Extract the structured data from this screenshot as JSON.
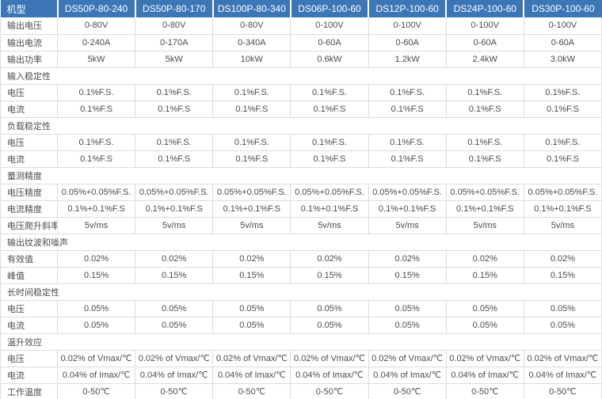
{
  "table": {
    "colors": {
      "header_bg": "#3c76b6",
      "header_text": "#ffffff",
      "border": "#dcdcdc",
      "body_text": "#4c4c4c"
    },
    "header": {
      "label": "机型",
      "models": [
        "DS50P-80-240",
        "DS50P-80-170",
        "DS100P-80-340",
        "DS06P-100-60",
        "DS12P-100-60",
        "DS24P-100-60",
        "DS30P-100-60"
      ]
    },
    "rows": [
      {
        "type": "data",
        "label": "输出电压",
        "values": [
          "0-80V",
          "0-80V",
          "0-80V",
          "0-100V",
          "0-100V",
          "0-100V",
          "0-100V"
        ]
      },
      {
        "type": "data",
        "label": "输出电流",
        "values": [
          "0-240A",
          "0-170A",
          "0-340A",
          "0-60A",
          "0-60A",
          "0-60A",
          "0-60A"
        ]
      },
      {
        "type": "data",
        "label": "输出功率",
        "values": [
          "5kW",
          "5kW",
          "10kW",
          "0.6kW",
          "1.2kW",
          "2.4kW",
          "3.0kW"
        ]
      },
      {
        "type": "section",
        "label": "输入稳定性"
      },
      {
        "type": "data",
        "label": "电压",
        "values": [
          "0.1%F.S.",
          "0.1%F.S.",
          "0.1%F.S.",
          "0.1%F.S.",
          "0.1%F.S.",
          "0.1%F.S.",
          "0.1%F.S."
        ]
      },
      {
        "type": "data",
        "label": "电流",
        "values": [
          "0.1%F.S",
          "0.1%F.S",
          "0.1%F.S",
          "0.1%F.S",
          "0.1%F.S",
          "0.1%F.S",
          "0.1%F.S"
        ]
      },
      {
        "type": "section",
        "label": "负载稳定性"
      },
      {
        "type": "data",
        "label": "电压",
        "values": [
          "0.1%F.S.",
          "0.1%F.S.",
          "0.1%F.S.",
          "0.1%F.S.",
          "0.1%F.S.",
          "0.1%F.S.",
          "0.1%F.S."
        ]
      },
      {
        "type": "data",
        "label": "电流",
        "values": [
          "0.1%F.S",
          "0.1%F.S",
          "0.1%F.S",
          "0.1%F.S",
          "0.1%F.S",
          "0.1%F.S",
          "0.1%F.S"
        ]
      },
      {
        "type": "section",
        "label": "量测精度"
      },
      {
        "type": "data",
        "label": "电压精度",
        "values": [
          "0.05%+0.05%F.S.",
          "0.05%+0.05%F.S.",
          "0.05%+0.05%F.S.",
          "0.05%+0.05%F.S.",
          "0.05%+0.05%F.S.",
          "0.05%+0.05%F.S.",
          "0.05%+0.05%F.S."
        ]
      },
      {
        "type": "data",
        "label": "电流精度",
        "values": [
          "0.1%+0.1%F.S",
          "0.1%+0.1%F.S",
          "0.1%+0.1%F.S",
          "0.1%+0.1%F.S",
          "0.1%+0.1%F.S",
          "0.1%+0.1%F.S",
          "0.1%+0.1%F.S"
        ]
      },
      {
        "type": "data",
        "label": "电压爬升斜率",
        "values": [
          "5v/ms",
          "5v/ms",
          "5v/ms",
          "5v/ms",
          "5v/ms",
          "5v/ms",
          "5v/ms"
        ]
      },
      {
        "type": "section",
        "label": "输出纹波和噪声"
      },
      {
        "type": "data",
        "label": "有效值",
        "values": [
          "0.02%",
          "0.02%",
          "0.02%",
          "0.02%",
          "0.02%",
          "0.02%",
          "0.02%"
        ]
      },
      {
        "type": "data",
        "label": "峰值",
        "values": [
          "0.15%",
          "0.15%",
          "0.15%",
          "0.15%",
          "0.15%",
          "0.15%",
          "0.15%"
        ]
      },
      {
        "type": "section",
        "label": "长时间稳定性"
      },
      {
        "type": "data",
        "label": "电压",
        "values": [
          "0.05%",
          "0.05%",
          "0.05%",
          "0.05%",
          "0.05%",
          "0.05%",
          "0.05%"
        ]
      },
      {
        "type": "data",
        "label": "电流",
        "values": [
          "0.05%",
          "0.05%",
          "0.05%",
          "0.05%",
          "0.05%",
          "0.05%",
          "0.05%"
        ]
      },
      {
        "type": "section",
        "label": "温升效应"
      },
      {
        "type": "data",
        "label": "电压",
        "values": [
          "0.02% of Vmax/℃",
          "0.02% of Vmax/℃",
          "0.02% of Vmax/℃",
          "0.02% of Vmax/℃",
          "0.02% of Vmax/℃",
          "0.02% of Vmax/℃",
          "0.02% of Vmax/℃"
        ]
      },
      {
        "type": "data",
        "label": "电流",
        "values": [
          "0.04% of Imax/℃",
          "0.04% of Imax/℃",
          "0.04% of Imax/℃",
          "0.04% of Imax/℃",
          "0.04% of Imax/℃",
          "0.04% of Imax/℃",
          "0.04% of Imax/℃"
        ]
      },
      {
        "type": "data",
        "label": "工作温度",
        "values": [
          "0-50℃",
          "0-50℃",
          "0-50℃",
          "0-50℃",
          "0-50℃",
          "0-50℃",
          "0-50℃"
        ]
      }
    ]
  }
}
